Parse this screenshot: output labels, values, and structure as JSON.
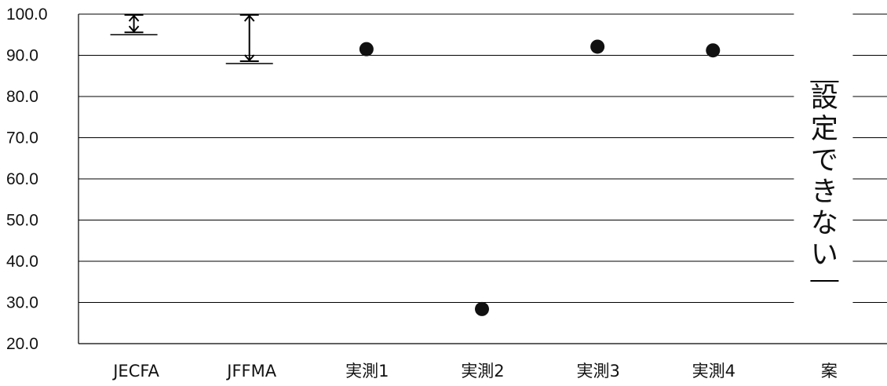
{
  "chart_data": {
    "type": "scatter",
    "title": "",
    "xlabel": "",
    "ylabel": "",
    "ylim": [
      20,
      100
    ],
    "yticks": [
      20,
      30,
      40,
      50,
      60,
      70,
      80,
      90,
      100
    ],
    "ytick_labels": [
      "20.0",
      "30.0",
      "40.0",
      "50.0",
      "60.0",
      "70.0",
      "80.0",
      "90.0",
      "100.0"
    ],
    "grid": true,
    "categories": [
      "JECFA",
      "JFFMA",
      "実測1",
      "実測2",
      "実測3",
      "実測4",
      "案"
    ],
    "ranges": [
      {
        "category": "JECFA",
        "low": 95.0,
        "high": 100.0
      },
      {
        "category": "JFFMA",
        "low": 88.0,
        "high": 100.0
      }
    ],
    "points": [
      {
        "category": "実測1",
        "value": 91.5
      },
      {
        "category": "実測2",
        "value": 28.4
      },
      {
        "category": "実測3",
        "value": 92.1
      },
      {
        "category": "実測4",
        "value": 91.2
      }
    ],
    "annotation": {
      "category": "案",
      "text": "設定できない"
    },
    "colors": {
      "marker": "#111111",
      "grid": "#000000"
    }
  }
}
